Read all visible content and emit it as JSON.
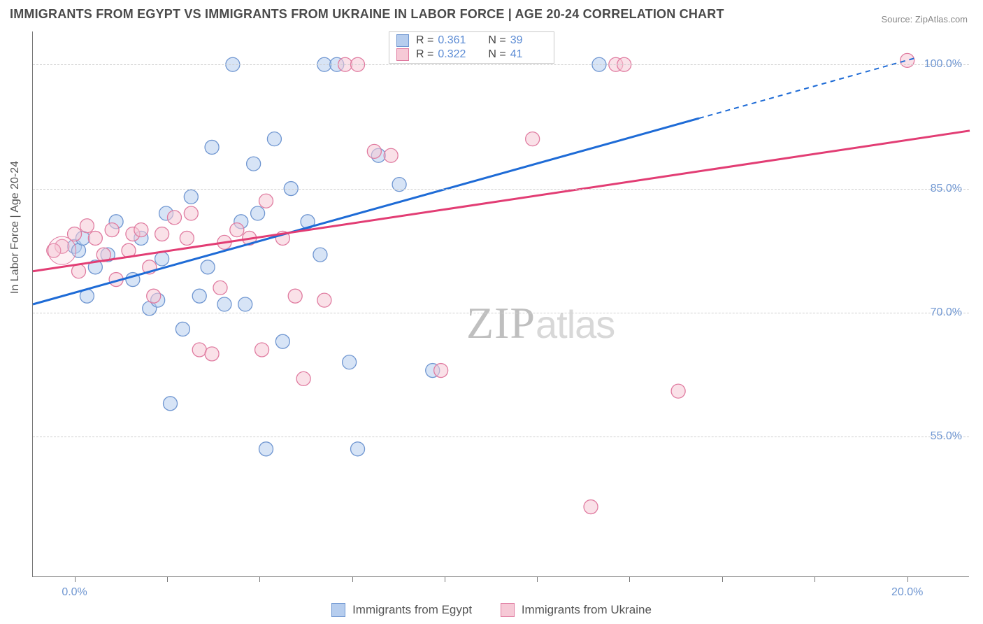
{
  "title": "IMMIGRANTS FROM EGYPT VS IMMIGRANTS FROM UKRAINE IN LABOR FORCE | AGE 20-24 CORRELATION CHART",
  "source_label": "Source: ZipAtlas.com",
  "y_axis_title": "In Labor Force | Age 20-24",
  "watermark": {
    "zip": "ZIP",
    "atlas": "atlas"
  },
  "colors": {
    "egypt_fill": "#b6cdee",
    "egypt_stroke": "#6f96d1",
    "ukraine_fill": "#f6c9d6",
    "ukraine_stroke": "#e07ba0",
    "egypt_line": "#1e6bd6",
    "ukraine_line": "#e23d74",
    "axis_label": "#6f96d1",
    "grid": "#cfcfcf",
    "text": "#4a4a4a"
  },
  "chart": {
    "type": "scatter",
    "xlim": [
      -1.0,
      21.5
    ],
    "ylim": [
      38.0,
      104.0
    ],
    "x_ticks": [
      0,
      2.22,
      4.44,
      6.67,
      8.89,
      11.11,
      13.33,
      15.56,
      17.78,
      20.0
    ],
    "x_tick_labels": {
      "0": "0.0%",
      "20": "20.0%"
    },
    "y_gridlines": [
      55.0,
      70.0,
      85.0,
      100.0
    ],
    "y_tick_labels": {
      "55": "55.0%",
      "70": "70.0%",
      "85": "85.0%",
      "100": "100.0%"
    },
    "marker_radius": 10,
    "marker_opacity": 0.55,
    "line_width": 3
  },
  "stats": {
    "egypt": {
      "R": "0.361",
      "N": "39"
    },
    "ukraine": {
      "R": "0.322",
      "N": "41"
    }
  },
  "series": [
    {
      "name": "Immigrants from Egypt",
      "key": "egypt",
      "points": [
        [
          0.0,
          78.0
        ],
        [
          0.1,
          77.5
        ],
        [
          0.2,
          79.0
        ],
        [
          0.3,
          72.0
        ],
        [
          0.5,
          75.5
        ],
        [
          0.8,
          77.0
        ],
        [
          1.0,
          81.0
        ],
        [
          1.4,
          74.0
        ],
        [
          1.6,
          79.0
        ],
        [
          1.8,
          70.5
        ],
        [
          2.0,
          71.5
        ],
        [
          2.1,
          76.5
        ],
        [
          2.2,
          82.0
        ],
        [
          2.3,
          59.0
        ],
        [
          2.6,
          68.0
        ],
        [
          2.8,
          84.0
        ],
        [
          3.0,
          72.0
        ],
        [
          3.2,
          75.5
        ],
        [
          3.3,
          90.0
        ],
        [
          3.6,
          71.0
        ],
        [
          3.8,
          100.0
        ],
        [
          4.0,
          81.0
        ],
        [
          4.1,
          71.0
        ],
        [
          4.3,
          88.0
        ],
        [
          4.4,
          82.0
        ],
        [
          4.6,
          53.5
        ],
        [
          4.8,
          91.0
        ],
        [
          5.0,
          66.5
        ],
        [
          5.2,
          85.0
        ],
        [
          5.6,
          81.0
        ],
        [
          5.9,
          77.0
        ],
        [
          6.0,
          100.0
        ],
        [
          6.3,
          100.0
        ],
        [
          6.6,
          64.0
        ],
        [
          6.8,
          53.5
        ],
        [
          7.3,
          89.0
        ],
        [
          7.8,
          85.5
        ],
        [
          8.6,
          63.0
        ],
        [
          12.6,
          100.0
        ]
      ],
      "regression": {
        "x1": -1.0,
        "y1": 71.0,
        "x2": 15.0,
        "y2": 93.5
      },
      "regression_extrapolate": {
        "x1": 15.0,
        "y1": 93.5,
        "x2": 20.2,
        "y2": 100.8
      }
    },
    {
      "name": "Immigrants from Ukraine",
      "key": "ukraine",
      "points": [
        [
          -0.3,
          78.0
        ],
        [
          0.0,
          79.5
        ],
        [
          0.1,
          75.0
        ],
        [
          0.3,
          80.5
        ],
        [
          0.5,
          79.0
        ],
        [
          0.7,
          77.0
        ],
        [
          0.9,
          80.0
        ],
        [
          1.0,
          74.0
        ],
        [
          1.3,
          77.5
        ],
        [
          1.4,
          79.5
        ],
        [
          1.6,
          80.0
        ],
        [
          1.8,
          75.5
        ],
        [
          1.9,
          72.0
        ],
        [
          2.1,
          79.5
        ],
        [
          2.4,
          81.5
        ],
        [
          2.7,
          79.0
        ],
        [
          2.8,
          82.0
        ],
        [
          3.0,
          65.5
        ],
        [
          3.3,
          65.0
        ],
        [
          3.5,
          73.0
        ],
        [
          3.6,
          78.5
        ],
        [
          3.9,
          80.0
        ],
        [
          4.2,
          79.0
        ],
        [
          4.5,
          65.5
        ],
        [
          4.6,
          83.5
        ],
        [
          5.0,
          79.0
        ],
        [
          5.3,
          72.0
        ],
        [
          5.5,
          62.0
        ],
        [
          6.0,
          71.5
        ],
        [
          6.5,
          100.0
        ],
        [
          6.8,
          100.0
        ],
        [
          7.2,
          89.5
        ],
        [
          7.6,
          89.0
        ],
        [
          8.8,
          63.0
        ],
        [
          11.0,
          91.0
        ],
        [
          12.4,
          46.5
        ],
        [
          13.0,
          100.0
        ],
        [
          13.2,
          100.0
        ],
        [
          14.5,
          60.5
        ],
        [
          20.0,
          100.5
        ],
        [
          -0.5,
          77.5
        ]
      ],
      "regression": {
        "x1": -1.0,
        "y1": 75.0,
        "x2": 21.5,
        "y2": 92.0
      }
    }
  ],
  "bottom_legend": {
    "egypt": "Immigrants from Egypt",
    "ukraine": "Immigrants from Ukraine"
  }
}
